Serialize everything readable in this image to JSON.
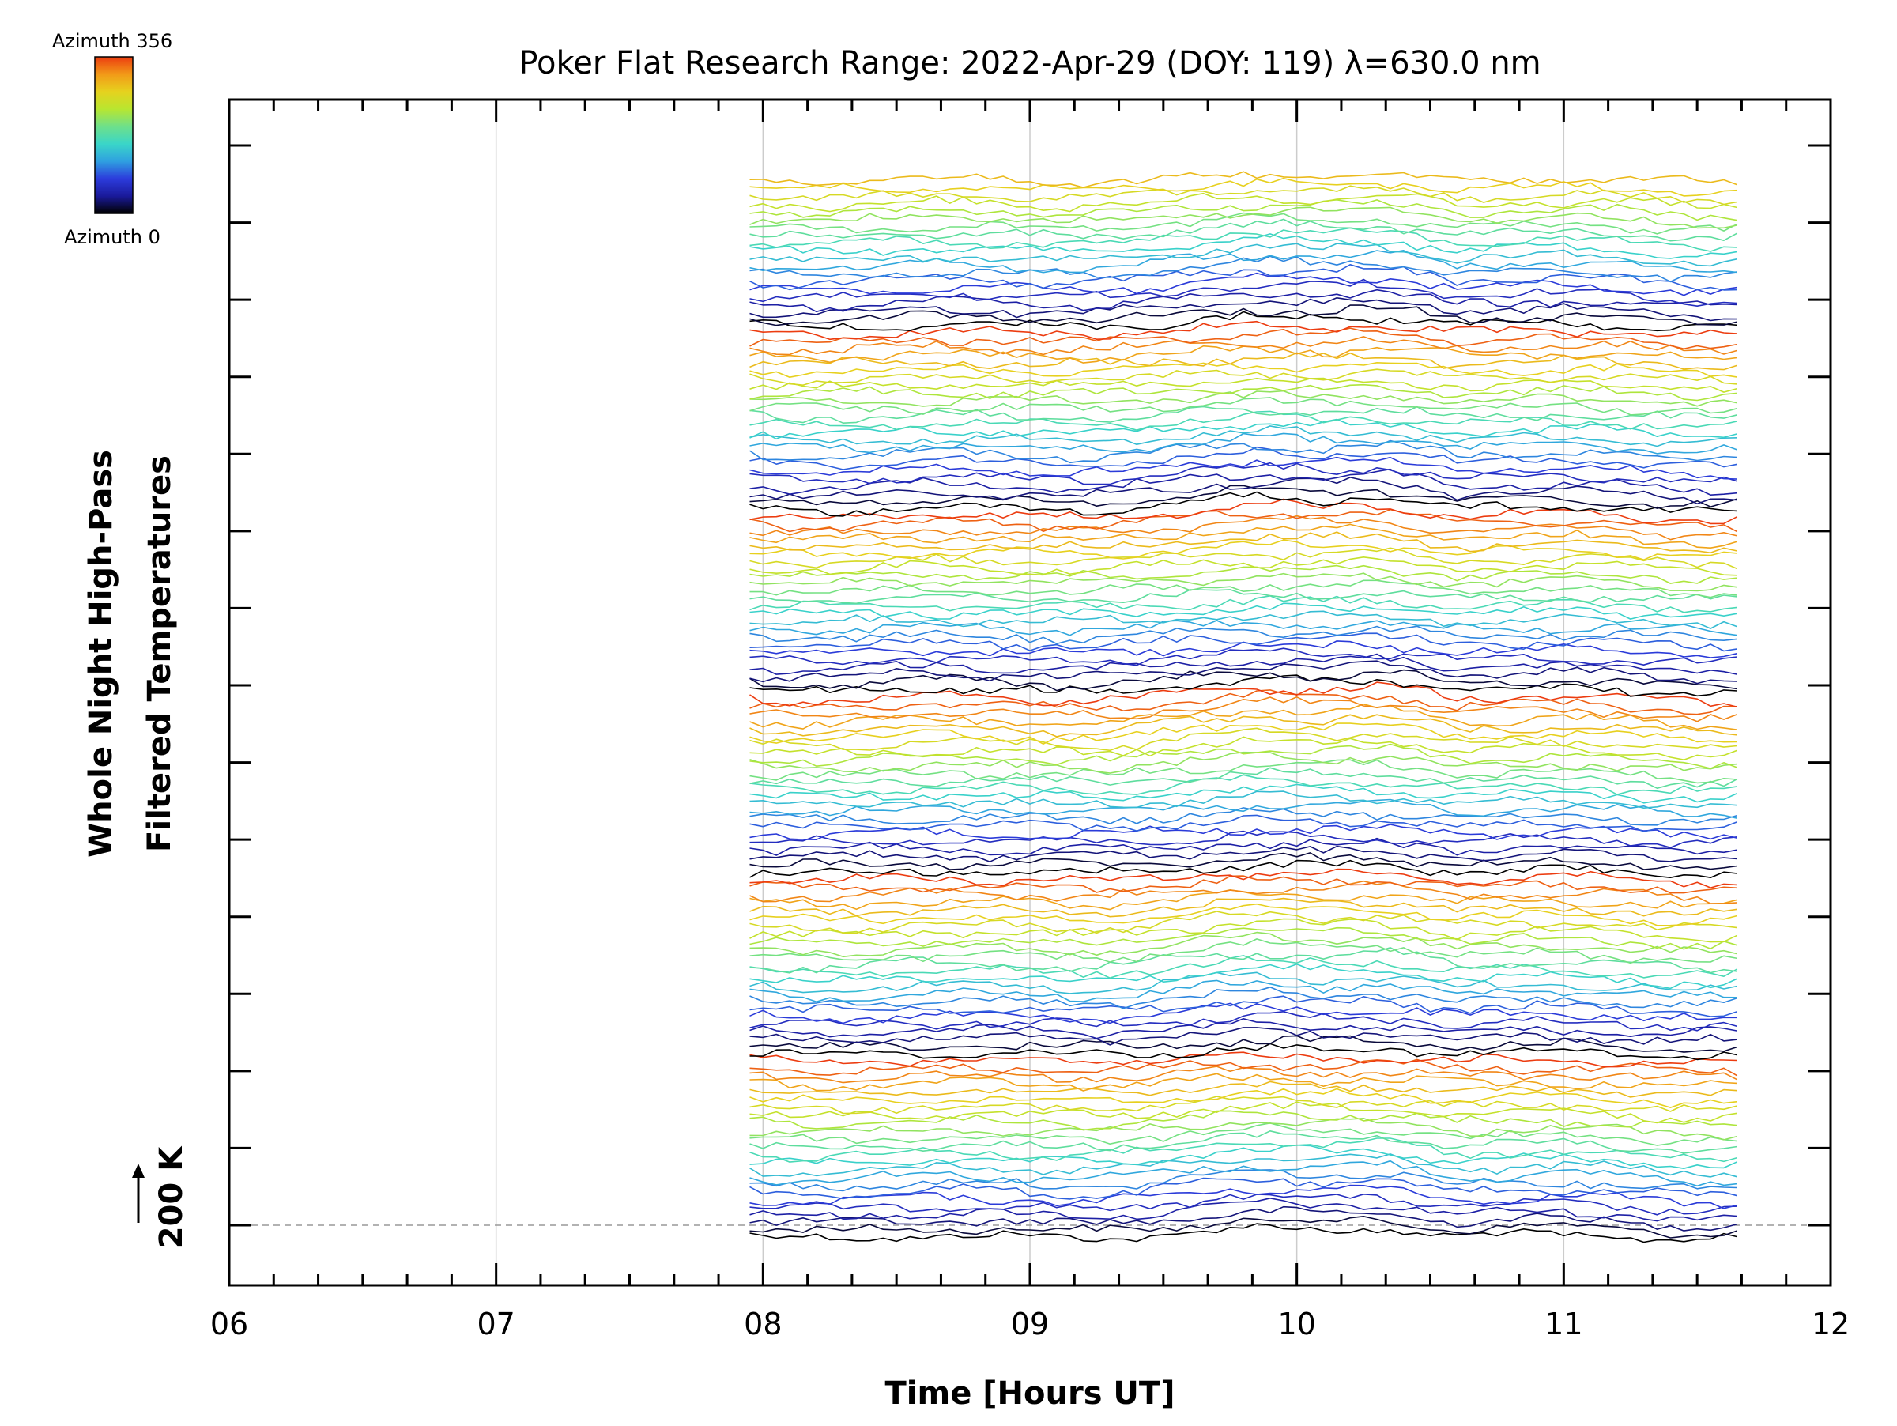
{
  "chart_data": {
    "type": "line",
    "title": "Poker Flat Research Range: 2022-Apr-29 (DOY: 119) λ=630.0 nm",
    "xlabel": "Time [Hours UT]",
    "ylabel_line1": "Whole Night High-Pass",
    "ylabel_line2": "Filtered Temperatures",
    "scale_label": "200 K",
    "xlim": [
      6,
      12
    ],
    "x_ticks": [
      "06",
      "07",
      "08",
      "09",
      "10",
      "11",
      "12"
    ],
    "x_tick_values": [
      6,
      7,
      8,
      9,
      10,
      11,
      12
    ],
    "x_gridlines": [
      7,
      8,
      9,
      10,
      11
    ],
    "data_start_hour": 7.95,
    "data_end_hour": 11.68,
    "sample_step_hours": 0.05,
    "num_traces": 140,
    "traces_per_group": 24,
    "colorbar": {
      "top_label": "Azimuth 356",
      "bottom_label": "Azimuth 0",
      "min": 0,
      "max": 356,
      "stops": [
        "#000000",
        "#1a1a9a",
        "#2c3cdc",
        "#2fa0e0",
        "#3ad6c8",
        "#6ee08a",
        "#b8e630",
        "#e6d21e",
        "#f29a18",
        "#ec3c10"
      ]
    },
    "colors": {
      "frame": "#000000",
      "grid": "#cccccc",
      "baseline": "#999999"
    }
  }
}
